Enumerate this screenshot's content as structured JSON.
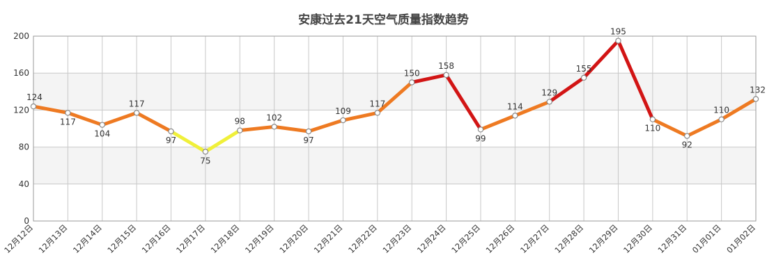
{
  "chart_data": {
    "type": "line",
    "title": "安康过去21天空气质量指数趋势",
    "categories": [
      "12月12日",
      "12月13日",
      "12月14日",
      "12月15日",
      "12月16日",
      "12月17日",
      "12月18日",
      "12月19日",
      "12月20日",
      "12月21日",
      "12月22日",
      "12月23日",
      "12月24日",
      "12月25日",
      "12月26日",
      "12月27日",
      "12月28日",
      "12月29日",
      "12月30日",
      "12月31日",
      "01月01日",
      "01月02日"
    ],
    "values": [
      124,
      117,
      104,
      117,
      97,
      75,
      98,
      102,
      97,
      109,
      117,
      150,
      158,
      99,
      114,
      129,
      155,
      195,
      110,
      92,
      110,
      132
    ],
    "ylim": [
      0,
      200
    ],
    "yticks": [
      0,
      40,
      80,
      120,
      160,
      200
    ],
    "grid": true,
    "legend": "none",
    "colors": {
      "good_yellow": "#f0f03a",
      "light_orange": "#ee7a22",
      "moderate_red": "#d21515",
      "band": "#f4f4f4",
      "grid": "#c8c8c8",
      "marker_fill": "#ffffff",
      "marker_stroke": "#888888"
    },
    "color_thresholds": [
      {
        "max": 100,
        "color": "#f0f03a"
      },
      {
        "max": 150,
        "color": "#ee7a22"
      },
      {
        "max": 200,
        "color": "#d21515"
      }
    ]
  }
}
